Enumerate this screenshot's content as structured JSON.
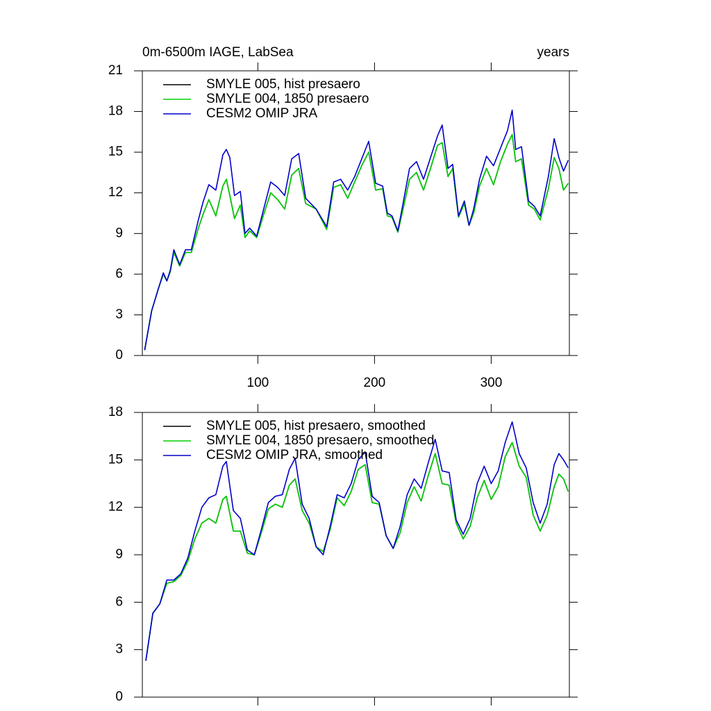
{
  "chart_data": [
    {
      "type": "line",
      "title": "0m-6500m IAGE, LabSea",
      "title_right": "years",
      "x": [
        3,
        9,
        15,
        19,
        22,
        25,
        28,
        33,
        38,
        43,
        49,
        53,
        58,
        64,
        70,
        73,
        76,
        80,
        85,
        89,
        93,
        99,
        105,
        111,
        117,
        123,
        129,
        135,
        141,
        150,
        159,
        165,
        171,
        177,
        183,
        189,
        195,
        201,
        207,
        211,
        215,
        220,
        224,
        230,
        236,
        242,
        248,
        254,
        258,
        263,
        267,
        272,
        277,
        281,
        285,
        290,
        296,
        302,
        308,
        314,
        318,
        321,
        326,
        332,
        337,
        342,
        349,
        354,
        358,
        362,
        366
      ],
      "series": [
        {
          "name": "SMYLE 005, hist presaero",
          "color": "#000000",
          "values": [
            0.4,
            3.3,
            5.0,
            6.0,
            5.5,
            6.2,
            7.6,
            6.6,
            7.6,
            7.6,
            9.4,
            10.4,
            11.5,
            10.3,
            12.5,
            13.0,
            11.8,
            10.1,
            11.1,
            8.7,
            9.2,
            8.7,
            10.4,
            12.0,
            11.5,
            10.8,
            13.3,
            13.8,
            11.2,
            10.8,
            9.3,
            12.4,
            12.6,
            11.6,
            12.8,
            14.0,
            15.0,
            12.2,
            12.3,
            10.3,
            10.2,
            9.1,
            10.6,
            13.0,
            13.5,
            12.2,
            13.8,
            15.5,
            15.7,
            13.2,
            13.8,
            10.2,
            11.2,
            9.6,
            10.5,
            12.5,
            13.8,
            12.6,
            14.3,
            15.6,
            16.3,
            14.3,
            14.5,
            11.1,
            10.8,
            10.0,
            12.3,
            14.6,
            13.8,
            12.2,
            12.7
          ]
        },
        {
          "name": "SMYLE 004, 1850 presaero",
          "color": "#00d000",
          "values": [
            0.4,
            3.3,
            5.0,
            6.0,
            5.5,
            6.2,
            7.6,
            6.6,
            7.6,
            7.6,
            9.4,
            10.4,
            11.5,
            10.3,
            12.5,
            13.0,
            11.8,
            10.1,
            11.1,
            8.7,
            9.2,
            8.7,
            10.4,
            12.0,
            11.5,
            10.8,
            13.3,
            13.8,
            11.2,
            10.8,
            9.3,
            12.4,
            12.6,
            11.6,
            12.8,
            14.0,
            15.0,
            12.2,
            12.3,
            10.3,
            10.2,
            9.1,
            10.6,
            13.0,
            13.5,
            12.2,
            13.8,
            15.5,
            15.7,
            13.2,
            13.8,
            10.2,
            11.2,
            9.6,
            10.5,
            12.5,
            13.8,
            12.6,
            14.3,
            15.6,
            16.3,
            14.3,
            14.5,
            11.1,
            10.8,
            10.0,
            12.3,
            14.6,
            13.8,
            12.2,
            12.7
          ]
        },
        {
          "name": "CESM2 OMIP JRA",
          "color": "#0000c8",
          "values": [
            0.4,
            3.3,
            5.0,
            6.1,
            5.5,
            6.3,
            7.8,
            6.7,
            7.8,
            7.8,
            10.0,
            11.3,
            12.6,
            12.2,
            14.8,
            15.2,
            14.6,
            11.8,
            12.1,
            9.0,
            9.4,
            8.8,
            10.8,
            12.8,
            12.4,
            11.8,
            14.5,
            14.9,
            11.6,
            10.8,
            9.5,
            12.8,
            13.0,
            12.2,
            13.2,
            14.5,
            15.8,
            12.7,
            12.5,
            10.5,
            10.3,
            9.2,
            11.0,
            13.8,
            14.3,
            13.0,
            14.6,
            16.2,
            17.0,
            13.8,
            14.1,
            10.3,
            11.4,
            9.6,
            10.8,
            13.0,
            14.7,
            14.0,
            15.3,
            16.6,
            18.1,
            15.2,
            15.4,
            11.4,
            11.0,
            10.3,
            13.2,
            16.0,
            14.6,
            13.6,
            14.4
          ]
        }
      ],
      "xlim": [
        1,
        367
      ],
      "ylim": [
        0,
        21
      ],
      "xticks": [
        100,
        200,
        300
      ],
      "yticks": [
        0,
        3,
        6,
        9,
        12,
        15,
        18,
        21
      ],
      "x_tick_labels": true
    },
    {
      "type": "line",
      "x": [
        4,
        10,
        16,
        22,
        28,
        34,
        40,
        46,
        52,
        58,
        64,
        70,
        73,
        79,
        85,
        91,
        97,
        103,
        109,
        115,
        121,
        127,
        132,
        138,
        144,
        150,
        156,
        162,
        168,
        174,
        180,
        186,
        192,
        198,
        204,
        210,
        216,
        222,
        228,
        234,
        240,
        246,
        252,
        258,
        264,
        270,
        276,
        282,
        288,
        294,
        300,
        306,
        312,
        318,
        324,
        330,
        336,
        342,
        348,
        354,
        358,
        362,
        366
      ],
      "series": [
        {
          "name": "SMYLE 005, hist presaero, smoothed",
          "color": "#000000",
          "values": [
            2.3,
            5.3,
            5.9,
            7.2,
            7.3,
            7.7,
            8.6,
            10.0,
            11.0,
            11.3,
            11.0,
            12.5,
            12.7,
            10.5,
            10.5,
            9.1,
            9.0,
            10.4,
            11.9,
            12.2,
            12.0,
            13.4,
            13.8,
            11.8,
            11.0,
            9.5,
            9.2,
            10.6,
            12.6,
            12.1,
            13.0,
            14.4,
            14.7,
            12.3,
            12.2,
            10.2,
            9.4,
            10.4,
            12.3,
            13.3,
            12.4,
            14.0,
            15.4,
            13.5,
            13.4,
            11.0,
            10.0,
            10.8,
            12.6,
            13.7,
            12.5,
            13.3,
            15.2,
            16.1,
            14.6,
            13.9,
            11.5,
            10.5,
            11.5,
            13.3,
            14.1,
            13.8,
            13.0
          ]
        },
        {
          "name": "SMYLE 004, 1850 presaero, smoothed",
          "color": "#00d000",
          "values": [
            2.3,
            5.3,
            5.9,
            7.2,
            7.3,
            7.7,
            8.6,
            10.0,
            11.0,
            11.3,
            11.0,
            12.5,
            12.7,
            10.5,
            10.5,
            9.1,
            9.0,
            10.4,
            11.9,
            12.2,
            12.0,
            13.4,
            13.8,
            11.8,
            11.0,
            9.5,
            9.2,
            10.6,
            12.6,
            12.1,
            13.0,
            14.4,
            14.7,
            12.3,
            12.2,
            10.2,
            9.4,
            10.4,
            12.3,
            13.3,
            12.4,
            14.0,
            15.4,
            13.5,
            13.4,
            11.0,
            10.0,
            10.8,
            12.6,
            13.7,
            12.5,
            13.3,
            15.2,
            16.1,
            14.6,
            13.9,
            11.5,
            10.5,
            11.5,
            13.3,
            14.1,
            13.8,
            13.0
          ]
        },
        {
          "name": "CESM2 OMIP JRA, smoothed",
          "color": "#0000c8",
          "values": [
            2.3,
            5.3,
            5.9,
            7.4,
            7.4,
            7.8,
            8.8,
            10.5,
            12.0,
            12.6,
            12.8,
            14.6,
            14.9,
            11.8,
            11.3,
            9.3,
            9.0,
            10.6,
            12.3,
            12.7,
            12.8,
            14.4,
            15.1,
            12.2,
            11.3,
            9.5,
            9.0,
            10.8,
            12.8,
            12.6,
            13.5,
            15.0,
            15.5,
            12.7,
            12.3,
            10.2,
            9.4,
            10.8,
            12.8,
            13.8,
            13.2,
            14.8,
            16.3,
            14.3,
            14.2,
            11.2,
            10.3,
            11.3,
            13.5,
            14.6,
            13.5,
            14.3,
            16.1,
            17.4,
            15.4,
            14.5,
            12.3,
            11.0,
            12.2,
            14.7,
            15.4,
            15.0,
            14.5
          ]
        }
      ],
      "xlim": [
        1,
        367
      ],
      "ylim": [
        0,
        18
      ],
      "xticks": [
        100,
        200,
        300
      ],
      "yticks": [
        0,
        3,
        6,
        9,
        12,
        15,
        18
      ],
      "x_tick_labels": false
    }
  ]
}
